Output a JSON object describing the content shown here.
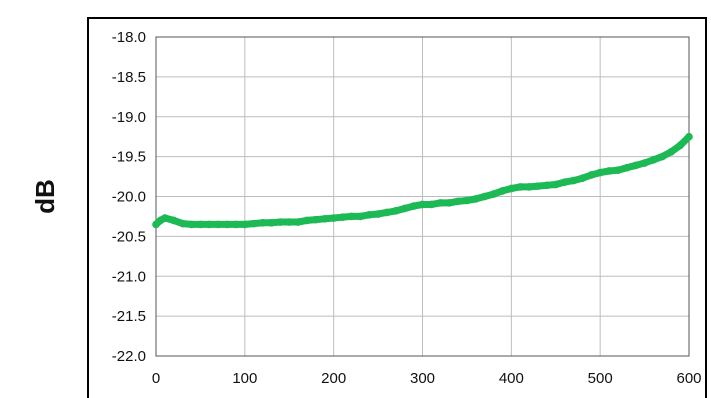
{
  "chart_data": {
    "type": "line",
    "title": "",
    "xlabel": "",
    "ylabel": "dB",
    "xlim": [
      0,
      600
    ],
    "ylim": [
      -22.0,
      -18.0
    ],
    "x_ticks": [
      0,
      100,
      200,
      300,
      400,
      500,
      600
    ],
    "x_tick_labels": [
      "0",
      "100",
      "200",
      "300",
      "400",
      "500",
      "600"
    ],
    "y_ticks": [
      -18.0,
      -18.5,
      -19.0,
      -19.5,
      -20.0,
      -20.5,
      -21.0,
      -21.5,
      -22.0
    ],
    "y_tick_labels": [
      "-18.0",
      "-18.5",
      "-19.0",
      "-19.5",
      "-20.0",
      "-20.5",
      "-21.0",
      "-21.5",
      "-22.0"
    ],
    "grid": true,
    "legend": "none",
    "series": [
      {
        "color": "#1db954",
        "x": [
          0,
          5,
          10,
          20,
          30,
          40,
          50,
          60,
          70,
          80,
          90,
          100,
          110,
          120,
          130,
          140,
          150,
          160,
          170,
          180,
          190,
          200,
          210,
          220,
          230,
          240,
          250,
          260,
          270,
          280,
          290,
          300,
          310,
          320,
          330,
          340,
          350,
          360,
          370,
          380,
          390,
          400,
          410,
          420,
          430,
          440,
          450,
          460,
          470,
          480,
          490,
          500,
          510,
          520,
          530,
          540,
          550,
          560,
          570,
          580,
          590,
          600
        ],
        "y": [
          -20.35,
          -20.3,
          -20.27,
          -20.3,
          -20.34,
          -20.35,
          -20.35,
          -20.35,
          -20.35,
          -20.35,
          -20.35,
          -20.35,
          -20.34,
          -20.33,
          -20.33,
          -20.32,
          -20.32,
          -20.32,
          -20.3,
          -20.29,
          -20.28,
          -20.27,
          -20.26,
          -20.25,
          -20.25,
          -20.23,
          -20.22,
          -20.2,
          -20.18,
          -20.15,
          -20.12,
          -20.1,
          -20.1,
          -20.08,
          -20.08,
          -20.06,
          -20.05,
          -20.03,
          -20.0,
          -19.97,
          -19.93,
          -19.9,
          -19.88,
          -19.88,
          -19.87,
          -19.86,
          -19.85,
          -19.82,
          -19.8,
          -19.77,
          -19.73,
          -19.7,
          -19.68,
          -19.67,
          -19.64,
          -19.61,
          -19.58,
          -19.54,
          -19.5,
          -19.44,
          -19.36,
          -19.25
        ]
      }
    ]
  }
}
